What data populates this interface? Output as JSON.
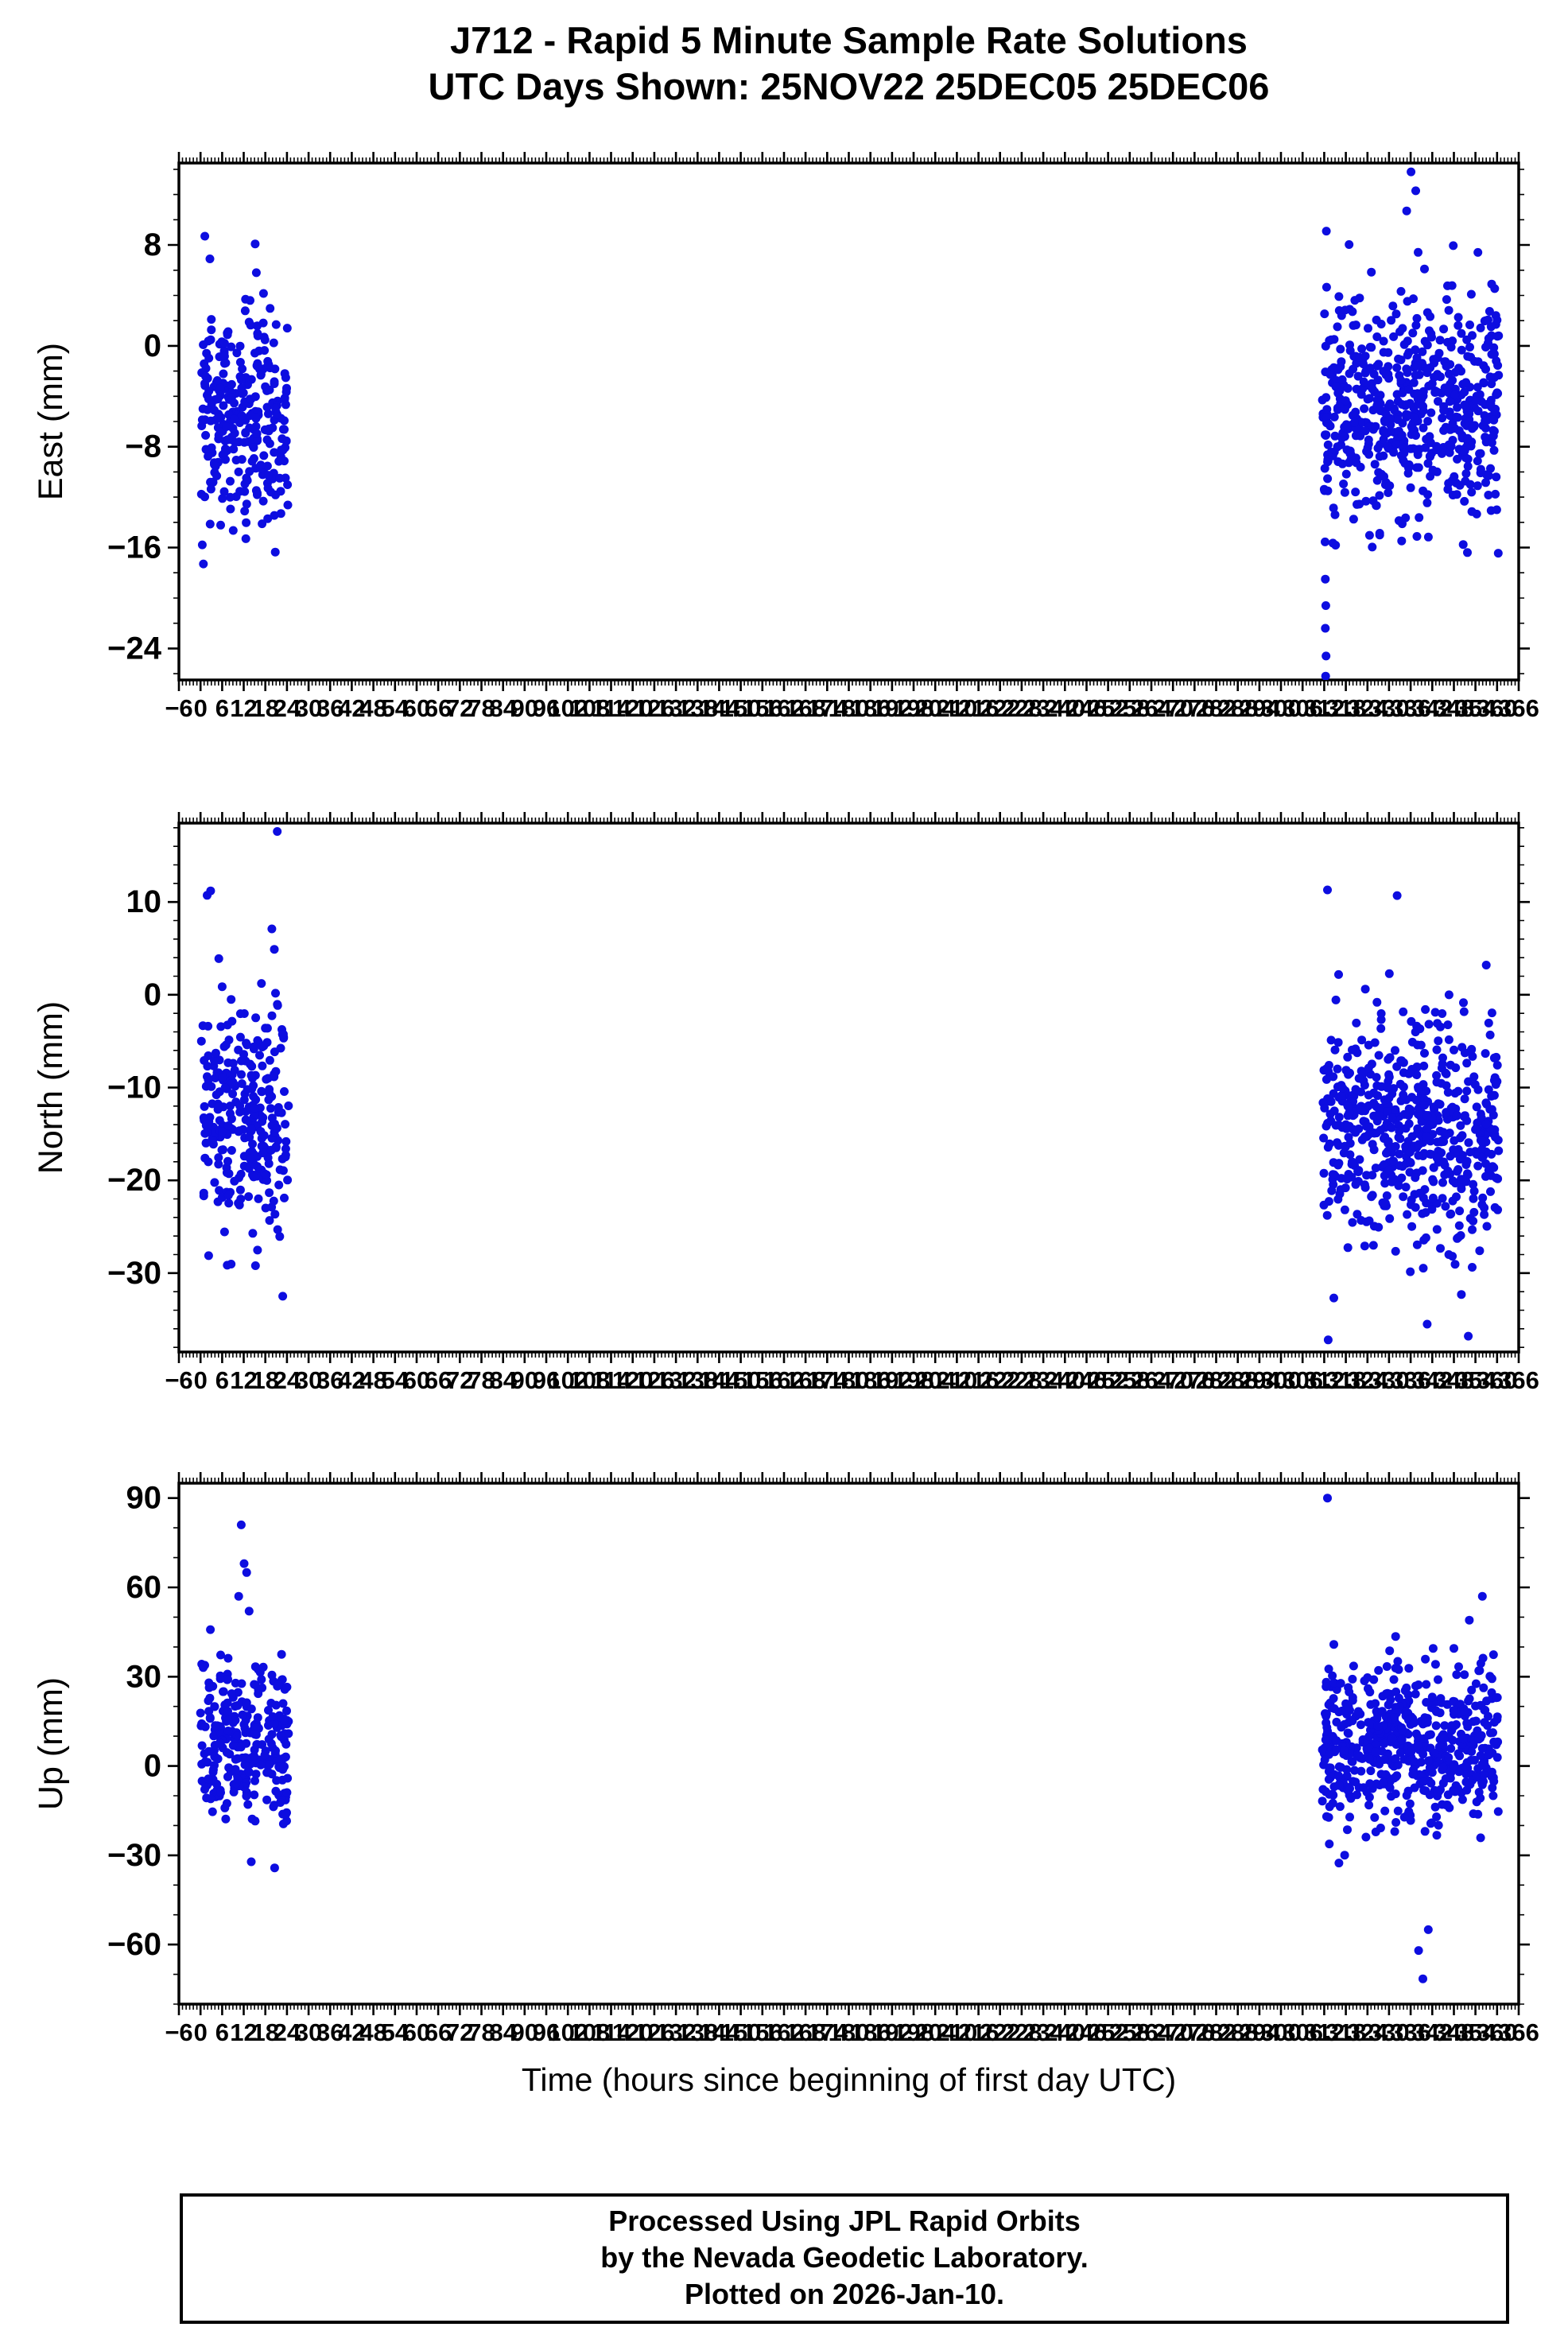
{
  "figure": {
    "title_line1": "J712 - Rapid 5 Minute Sample Rate Solutions",
    "title_line2": "UTC Days Shown:  25NOV22 25DEC05 25DEC06",
    "x_axis_title": "Time (hours since beginning of first day UTC)",
    "footer_line1": "Processed Using JPL Rapid Orbits",
    "footer_line2": "by the Nevada Geodetic Laboratory.",
    "footer_line3": "Plotted on 2026-Jan-10.",
    "point_color": "#0d0de0",
    "frame_color": "#000000",
    "text_color": "#000000"
  },
  "chart_data": [
    {
      "type": "scatter",
      "name": "East",
      "ylabel": "East (mm)",
      "xlim": [
        -6,
        366
      ],
      "ylim": [
        -26.5,
        14.5
      ],
      "xtick_major": 6,
      "xtick_minor": 1,
      "ytick_labels": [
        8,
        0,
        -8,
        -16,
        -24
      ],
      "ytick_minor": 2,
      "x_units": "hours since beginning of first day UTC",
      "clusters": [
        {
          "x_start": 0,
          "x_end": 24.5,
          "n": 280,
          "mean": -5.5,
          "sd": 4.2,
          "seed": 101
        },
        {
          "x_start": 311.5,
          "x_end": 360.5,
          "n": 580,
          "mean": -5.0,
          "sd": 4.6,
          "seed": 102
        }
      ],
      "outliers": [
        [
          1.2,
          8.7
        ],
        [
          2.6,
          6.9
        ],
        [
          15.5,
          5.8
        ],
        [
          0.8,
          -17.3
        ],
        [
          336.1,
          13.8
        ],
        [
          337.4,
          12.3
        ],
        [
          334.9,
          10.7
        ],
        [
          312.6,
          9.1
        ],
        [
          312.3,
          -18.5
        ],
        [
          312.45,
          -20.6
        ],
        [
          312.3,
          -22.4
        ],
        [
          312.5,
          -24.6
        ],
        [
          312.4,
          -26.2
        ],
        [
          358.5,
          4.9
        ]
      ]
    },
    {
      "type": "scatter",
      "name": "North",
      "ylabel": "North (mm)",
      "xlim": [
        -6,
        366
      ],
      "ylim": [
        -38.5,
        18.5
      ],
      "xtick_major": 6,
      "xtick_minor": 1,
      "ytick_labels": [
        10,
        0,
        -10,
        -20,
        -30
      ],
      "ytick_minor": 2,
      "x_units": "hours since beginning of first day UTC",
      "clusters": [
        {
          "x_start": 0,
          "x_end": 24.5,
          "n": 280,
          "mean": -14.0,
          "sd": 6.2,
          "seed": 201
        },
        {
          "x_start": 311.5,
          "x_end": 360.5,
          "n": 580,
          "mean": -14.5,
          "sd": 6.0,
          "seed": 202
        }
      ],
      "outliers": [
        [
          21.3,
          17.6
        ],
        [
          2.8,
          11.2
        ],
        [
          19.8,
          7.1
        ],
        [
          20.5,
          4.9
        ],
        [
          312.9,
          11.3
        ],
        [
          313.1,
          -37.2
        ],
        [
          340.6,
          -35.5
        ],
        [
          357.0,
          3.2
        ]
      ]
    },
    {
      "type": "scatter",
      "name": "Up",
      "ylabel": "Up (mm)",
      "xlim": [
        -6,
        366
      ],
      "ylim": [
        -80,
        95
      ],
      "xtick_major": 6,
      "xtick_minor": 1,
      "ytick_labels": [
        90,
        60,
        30,
        0,
        -30,
        -60
      ],
      "ytick_minor": 10,
      "x_units": "hours since beginning of first day UTC",
      "clusters": [
        {
          "x_start": 0,
          "x_end": 24.5,
          "n": 280,
          "mean": 8.0,
          "sd": 13.5,
          "seed": 301
        },
        {
          "x_start": 311.5,
          "x_end": 360.5,
          "n": 580,
          "mean": 7.0,
          "sd": 13.5,
          "seed": 302
        }
      ],
      "outliers": [
        [
          11.3,
          81
        ],
        [
          12.1,
          68
        ],
        [
          12.8,
          65
        ],
        [
          10.6,
          57
        ],
        [
          13.5,
          52
        ],
        [
          312.9,
          90
        ],
        [
          338.2,
          -62
        ],
        [
          339.4,
          -71.5
        ],
        [
          340.9,
          -55
        ],
        [
          355.9,
          57
        ],
        [
          352.3,
          49
        ]
      ]
    }
  ]
}
